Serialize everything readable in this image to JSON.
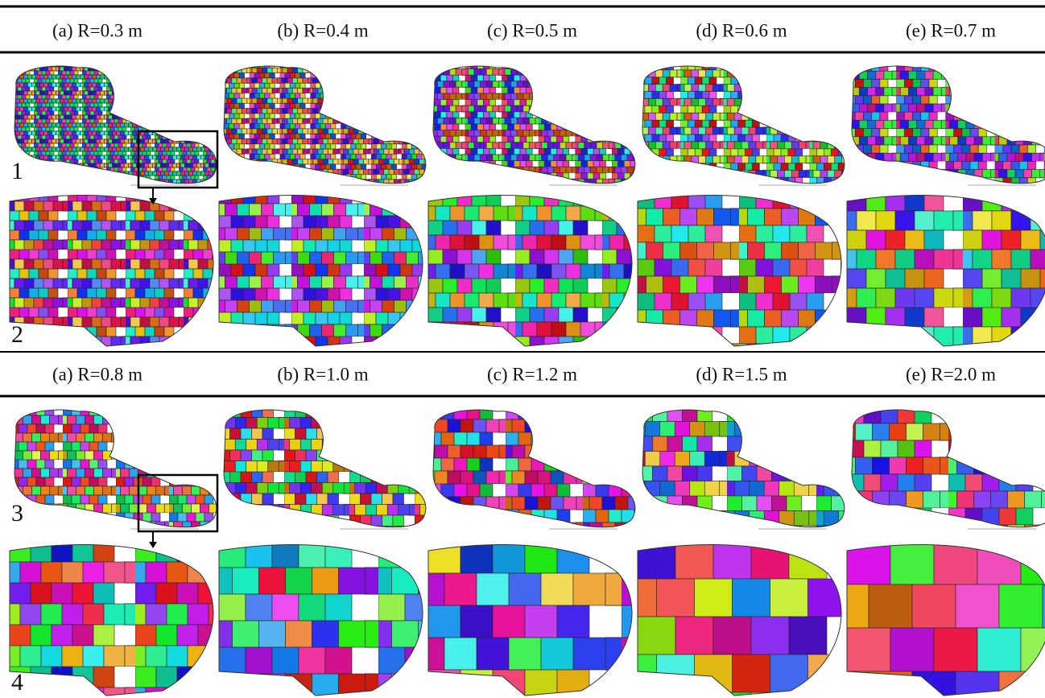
{
  "top_headers": [
    "(a) R=0.3 m",
    "(b) R=0.4 m",
    "(c) R=0.5 m",
    "(d) R=0.6 m",
    "(e) R=0.7 m"
  ],
  "bottom_headers": [
    "(a) R=0.8 m",
    "(b) R=1.0 m",
    "(c) R=1.2 m",
    "(d) R=1.5 m",
    "(e) R=2.0 m"
  ],
  "row_labels": [
    "1",
    "2",
    "3",
    "4"
  ]
}
